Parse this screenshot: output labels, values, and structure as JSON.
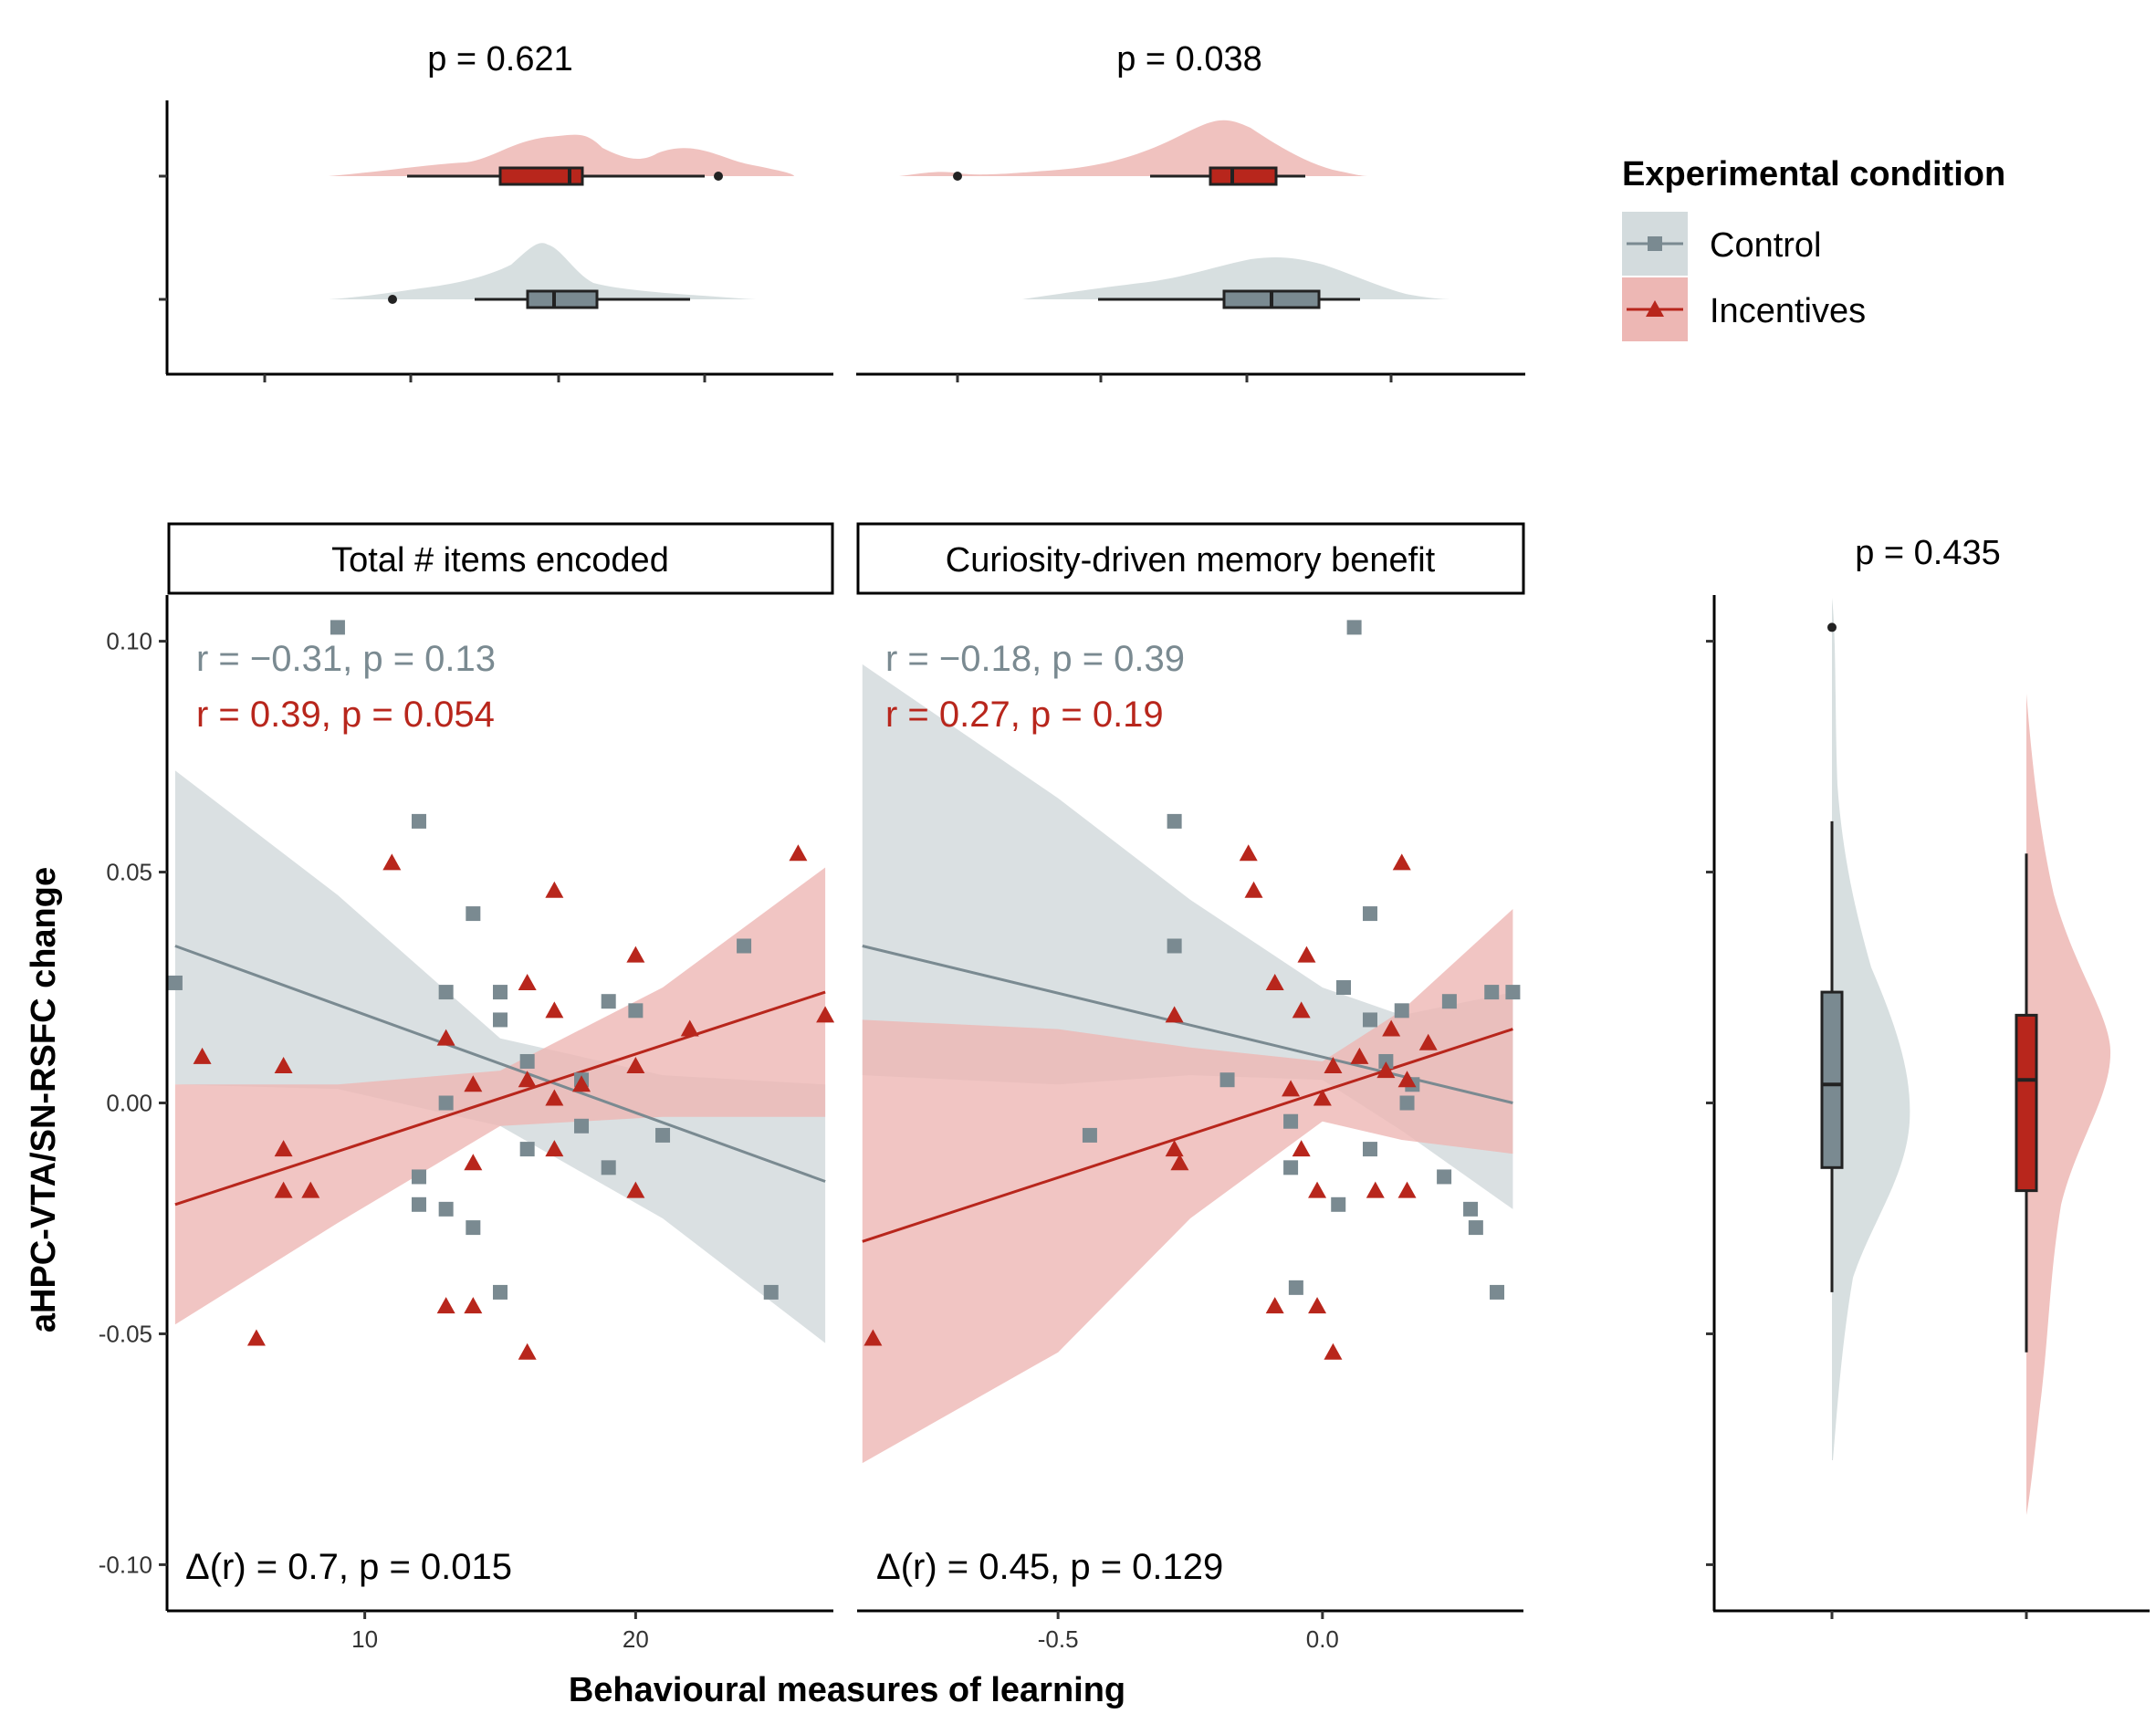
{
  "colors": {
    "control": "#7A8A91",
    "incentives": "#B8261C",
    "control_fill": "#D3DBDD",
    "incentives_fill": "#EDB7B4"
  },
  "axis_labels": {
    "y": "aHPC-VTA/SN-RSFC change",
    "x": "Behavioural measures of learning"
  },
  "legend": {
    "title": "Experimental condition",
    "items": [
      {
        "label": "Control",
        "shape": "square"
      },
      {
        "label": "Incentives",
        "shape": "triangle"
      }
    ]
  },
  "panels": {
    "left_strip": "Total # items encoded",
    "right_strip": "Curiosity-driven memory benefit",
    "left_top_p": "p = 0.621",
    "right_top_p": "p = 0.038",
    "side_p": "p = 0.435",
    "left_annot_control": "r = −0.31, p = 0.13",
    "left_annot_incent": "r = 0.39, p = 0.054",
    "right_annot_control": "r = −0.18, p = 0.39",
    "right_annot_incent": "r = 0.27, p = 0.19",
    "left_delta": "Δ(r) = 0.7, p = 0.015",
    "right_delta": "Δ(r) = 0.45, p = 0.129"
  },
  "chart_data": [
    {
      "type": "scatter",
      "panel": "Total # items encoded",
      "xlim": [
        2.7,
        27.3
      ],
      "ylim": [
        -0.11,
        0.11
      ],
      "x_ticks": [
        "10",
        "20"
      ],
      "x_tick_values": [
        10,
        20
      ],
      "y_ticks": [
        "-0.10",
        "-0.05",
        "0.00",
        "0.05",
        "0.10"
      ],
      "y_tick_values": [
        -0.1,
        -0.05,
        0.0,
        0.05,
        0.1
      ],
      "series": [
        {
          "name": "Control",
          "line": [
            [
              3,
              0.034
            ],
            [
              27,
              -0.017
            ]
          ],
          "ci_upper": [
            [
              3,
              0.072
            ],
            [
              9,
              0.045
            ],
            [
              15,
              0.014
            ],
            [
              21,
              0.006
            ],
            [
              27,
              0.004
            ]
          ],
          "ci_lower": [
            [
              3,
              0.004
            ],
            [
              9,
              0.003
            ],
            [
              15,
              -0.005
            ],
            [
              21,
              -0.025
            ],
            [
              27,
              -0.052
            ]
          ],
          "points": [
            [
              3,
              0.026
            ],
            [
              9,
              0.103
            ],
            [
              12,
              0.061
            ],
            [
              12,
              -0.016
            ],
            [
              12,
              -0.022
            ],
            [
              13,
              0.024
            ],
            [
              13,
              0.0
            ],
            [
              13,
              -0.023
            ],
            [
              14,
              0.041
            ],
            [
              14,
              -0.027
            ],
            [
              15,
              0.024
            ],
            [
              15,
              0.018
            ],
            [
              15,
              -0.041
            ],
            [
              16,
              0.009
            ],
            [
              16,
              -0.01
            ],
            [
              18,
              0.005
            ],
            [
              18,
              -0.005
            ],
            [
              19,
              0.022
            ],
            [
              19,
              -0.014
            ],
            [
              20,
              0.02
            ],
            [
              21,
              -0.007
            ],
            [
              24,
              0.034
            ],
            [
              25,
              -0.041
            ]
          ]
        },
        {
          "name": "Incentives",
          "line": [
            [
              3,
              -0.022
            ],
            [
              27,
              0.024
            ]
          ],
          "ci_upper": [
            [
              3,
              0.004
            ],
            [
              9,
              0.004
            ],
            [
              15,
              0.007
            ],
            [
              21,
              0.025
            ],
            [
              27,
              0.051
            ]
          ],
          "ci_lower": [
            [
              3,
              -0.048
            ],
            [
              9,
              -0.026
            ],
            [
              15,
              -0.005
            ],
            [
              21,
              -0.003
            ],
            [
              27,
              -0.003
            ]
          ],
          "points": [
            [
              4,
              0.01
            ],
            [
              6,
              -0.051
            ],
            [
              7,
              0.008
            ],
            [
              7,
              -0.01
            ],
            [
              7,
              -0.019
            ],
            [
              8,
              -0.019
            ],
            [
              11,
              0.052
            ],
            [
              13,
              0.014
            ],
            [
              13,
              -0.044
            ],
            [
              14,
              0.004
            ],
            [
              14,
              -0.013
            ],
            [
              14,
              -0.044
            ],
            [
              16,
              0.026
            ],
            [
              16,
              0.005
            ],
            [
              16,
              -0.054
            ],
            [
              17,
              0.046
            ],
            [
              17,
              0.02
            ],
            [
              17,
              0.001
            ],
            [
              17,
              -0.01
            ],
            [
              18,
              0.004
            ],
            [
              20,
              0.032
            ],
            [
              20,
              0.008
            ],
            [
              20,
              -0.019
            ],
            [
              22,
              0.016
            ],
            [
              26,
              0.054
            ],
            [
              27,
              0.019
            ]
          ]
        }
      ]
    },
    {
      "type": "scatter",
      "panel": "Curiosity-driven memory benefit",
      "xlim": [
        -0.88,
        0.38
      ],
      "ylim": [
        -0.11,
        0.11
      ],
      "x_ticks": [
        "-0.5",
        "0.0"
      ],
      "x_tick_values": [
        -0.5,
        0.0
      ],
      "series": [
        {
          "name": "Control",
          "line": [
            [
              -0.87,
              0.034
            ],
            [
              0.36,
              0.0
            ]
          ],
          "ci_upper": [
            [
              -0.87,
              0.095
            ],
            [
              -0.5,
              0.066
            ],
            [
              -0.25,
              0.044
            ],
            [
              0.0,
              0.025
            ],
            [
              0.15,
              0.019
            ],
            [
              0.36,
              0.024
            ]
          ],
          "ci_lower": [
            [
              -0.87,
              0.006
            ],
            [
              -0.5,
              0.004
            ],
            [
              -0.25,
              0.006
            ],
            [
              0.0,
              0.005
            ],
            [
              0.15,
              -0.006
            ],
            [
              0.36,
              -0.023
            ]
          ],
          "points": [
            [
              -0.44,
              -0.007
            ],
            [
              -0.28,
              0.061
            ],
            [
              -0.28,
              0.034
            ],
            [
              -0.18,
              0.005
            ],
            [
              -0.06,
              -0.004
            ],
            [
              -0.06,
              -0.014
            ],
            [
              -0.05,
              -0.04
            ],
            [
              0.03,
              -0.022
            ],
            [
              0.04,
              0.025
            ],
            [
              0.06,
              0.103
            ],
            [
              0.09,
              0.041
            ],
            [
              0.09,
              0.018
            ],
            [
              0.09,
              -0.01
            ],
            [
              0.12,
              0.009
            ],
            [
              0.15,
              0.02
            ],
            [
              0.16,
              0.0
            ],
            [
              0.17,
              0.004
            ],
            [
              0.23,
              -0.016
            ],
            [
              0.24,
              0.022
            ],
            [
              0.28,
              -0.023
            ],
            [
              0.29,
              -0.027
            ],
            [
              0.32,
              0.024
            ],
            [
              0.33,
              -0.041
            ],
            [
              0.36,
              0.024
            ]
          ]
        },
        {
          "name": "Incentives",
          "line": [
            [
              -0.87,
              -0.03
            ],
            [
              0.36,
              0.016
            ]
          ],
          "ci_upper": [
            [
              -0.87,
              0.018
            ],
            [
              -0.5,
              0.016
            ],
            [
              -0.25,
              0.012
            ],
            [
              0.0,
              0.009
            ],
            [
              0.15,
              0.02
            ],
            [
              0.36,
              0.042
            ]
          ],
          "ci_lower": [
            [
              -0.87,
              -0.078
            ],
            [
              -0.5,
              -0.054
            ],
            [
              -0.25,
              -0.025
            ],
            [
              0.0,
              -0.004
            ],
            [
              0.15,
              -0.008
            ],
            [
              0.36,
              -0.011
            ]
          ],
          "points": [
            [
              -0.85,
              -0.051
            ],
            [
              -0.28,
              0.019
            ],
            [
              -0.28,
              -0.01
            ],
            [
              -0.27,
              -0.013
            ],
            [
              -0.14,
              0.054
            ],
            [
              -0.13,
              0.046
            ],
            [
              -0.09,
              0.026
            ],
            [
              -0.09,
              -0.044
            ],
            [
              -0.06,
              0.003
            ],
            [
              -0.04,
              0.02
            ],
            [
              -0.04,
              -0.01
            ],
            [
              -0.03,
              0.032
            ],
            [
              -0.01,
              -0.019
            ],
            [
              -0.01,
              -0.044
            ],
            [
              0.0,
              0.001
            ],
            [
              0.02,
              0.008
            ],
            [
              0.02,
              -0.054
            ],
            [
              0.07,
              0.01
            ],
            [
              0.1,
              -0.019
            ],
            [
              0.12,
              0.007
            ],
            [
              0.13,
              0.016
            ],
            [
              0.15,
              0.052
            ],
            [
              0.16,
              0.005
            ],
            [
              0.16,
              -0.019
            ],
            [
              0.2,
              0.013
            ]
          ]
        }
      ]
    },
    {
      "type": "box",
      "panel": "marginal-x-total-items",
      "xlim": [
        2.7,
        27.3
      ],
      "series": [
        {
          "name": "Incentives",
          "q1": 15,
          "median": 17.5,
          "q3": 18,
          "whisker_low": 11,
          "whisker_high": 23,
          "outliers": [
            24
          ]
        },
        {
          "name": "Control",
          "q1": 15,
          "median": 16,
          "q3": 17.5,
          "whisker_low": 13,
          "whisker_high": 22,
          "outliers": [
            7
          ]
        }
      ]
    },
    {
      "type": "box",
      "panel": "marginal-x-curiosity",
      "xlim": [
        -0.88,
        0.38
      ],
      "series": [
        {
          "name": "Incentives",
          "q1": -0.2,
          "median": -0.16,
          "q3": -0.07,
          "whisker_low": -0.32,
          "whisker_high": -0.02,
          "outliers": [
            -0.71
          ]
        },
        {
          "name": "Control",
          "q1": -0.18,
          "median": -0.08,
          "q3": 0.01,
          "whisker_low": -0.44,
          "whisker_high": 0.09,
          "outliers": []
        }
      ]
    },
    {
      "type": "box",
      "panel": "marginal-y",
      "ylim": [
        -0.11,
        0.11
      ],
      "series": [
        {
          "name": "Control",
          "q1": -0.014,
          "median": 0.004,
          "q3": 0.024,
          "whisker_low": -0.041,
          "whisker_high": 0.061,
          "outliers": [
            0.103
          ]
        },
        {
          "name": "Incentives",
          "q1": -0.019,
          "median": 0.005,
          "q3": 0.019,
          "whisker_low": -0.054,
          "whisker_high": 0.054,
          "outliers": []
        }
      ]
    }
  ]
}
